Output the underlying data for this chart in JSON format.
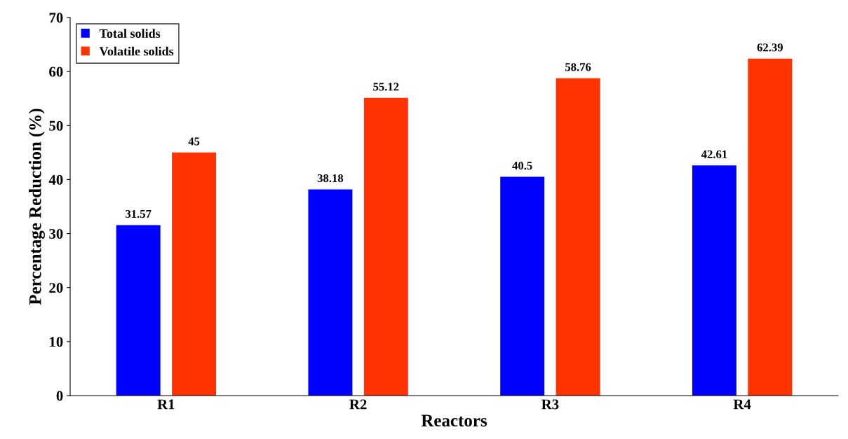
{
  "chart_data": {
    "type": "bar",
    "xlabel": "Reactors",
    "ylabel": "Percentage Reduction (%)",
    "categories": [
      "R1",
      "R2",
      "R3",
      "R4"
    ],
    "series": [
      {
        "name": "Total solids",
        "color": "#0000ff",
        "values": [
          31.57,
          38.18,
          40.5,
          42.61
        ]
      },
      {
        "name": "Volatile solids",
        "color": "#ff3300",
        "values": [
          45,
          55.12,
          58.76,
          62.39
        ]
      }
    ],
    "ylim": [
      0,
      70
    ],
    "yticks": [
      0,
      10,
      20,
      30,
      40,
      50,
      60,
      70
    ],
    "grid": false,
    "legend": "top left",
    "data_labels": true
  }
}
